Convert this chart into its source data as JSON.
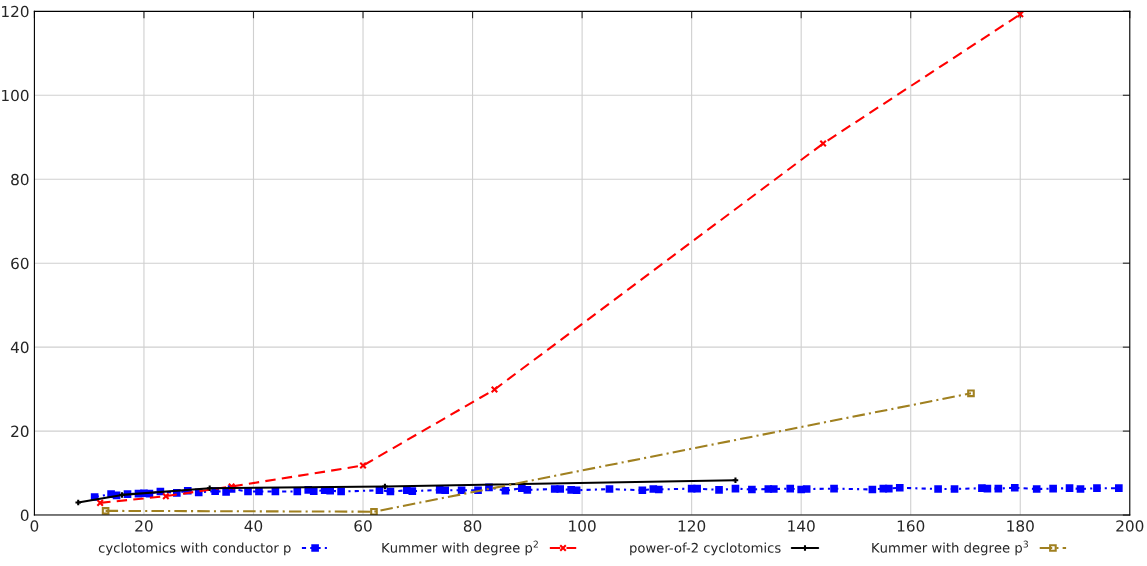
{
  "chart_data": {
    "type": "line",
    "xlim": [
      0,
      200
    ],
    "ylim": [
      0,
      120
    ],
    "xticks": [
      0,
      20,
      40,
      60,
      80,
      100,
      120,
      140,
      160,
      180,
      200
    ],
    "yticks": [
      0,
      20,
      40,
      60,
      80,
      100,
      120
    ],
    "grid": true,
    "legend": "bottom",
    "series": [
      {
        "name": "cyclotomics with conductor p",
        "color": "#0000ff",
        "marker": "square",
        "line_style": "dotted",
        "x": [
          11,
          14,
          15,
          17,
          19,
          20,
          21,
          23,
          26,
          28,
          30,
          33,
          35,
          36,
          39,
          41,
          44,
          48,
          50,
          51,
          53,
          54,
          56,
          63,
          65,
          68,
          69,
          74,
          75,
          78,
          81,
          83,
          86,
          89,
          90,
          95,
          96,
          98,
          99,
          105,
          111,
          113,
          114,
          120,
          121,
          125,
          128,
          131,
          134,
          135,
          138,
          140,
          141,
          146,
          153,
          155,
          156,
          158,
          165,
          168,
          173,
          174,
          176,
          179,
          183,
          186,
          189,
          191,
          194,
          198
        ],
        "values": [
          4.3,
          5.0,
          4.7,
          5.0,
          5.1,
          5.2,
          5.1,
          5.6,
          5.3,
          5.8,
          5.4,
          5.7,
          5.5,
          6.2,
          5.6,
          5.6,
          5.6,
          5.6,
          6.0,
          5.7,
          5.9,
          5.8,
          5.6,
          5.9,
          5.6,
          5.9,
          5.7,
          6.0,
          5.9,
          5.9,
          5.9,
          6.6,
          5.8,
          6.4,
          6.0,
          6.2,
          6.2,
          6.0,
          5.9,
          6.2,
          5.9,
          6.2,
          6.1,
          6.3,
          6.3,
          6.0,
          6.3,
          6.1,
          6.2,
          6.2,
          6.3,
          6.1,
          6.2,
          6.3,
          6.1,
          6.3,
          6.3,
          6.5,
          6.2,
          6.2,
          6.4,
          6.3,
          6.3,
          6.5,
          6.2,
          6.3,
          6.4,
          6.2,
          6.4,
          6.4
        ]
      },
      {
        "name": "Kummer with degree p$^{2}$",
        "color": "#ff0000",
        "marker": "cross",
        "line_style": "dashed",
        "x": [
          12,
          24,
          36,
          60,
          84,
          144,
          180
        ],
        "values": [
          2.9,
          4.5,
          6.8,
          11.8,
          29.9,
          88.5,
          119.3
        ]
      },
      {
        "name": "power-of-2 cyclotomics",
        "color": "#000000",
        "marker": "plus",
        "line_style": "solid",
        "x": [
          8,
          16,
          32,
          64,
          128
        ],
        "values": [
          3.0,
          4.8,
          6.4,
          6.8,
          8.3
        ]
      },
      {
        "name": "Kummer with degree p$^{3}$",
        "color": "#a08020",
        "marker": "square_open",
        "line_style": "dashdot",
        "x": [
          13,
          62,
          171
        ],
        "values": [
          1.0,
          0.8,
          29.0
        ]
      }
    ]
  }
}
